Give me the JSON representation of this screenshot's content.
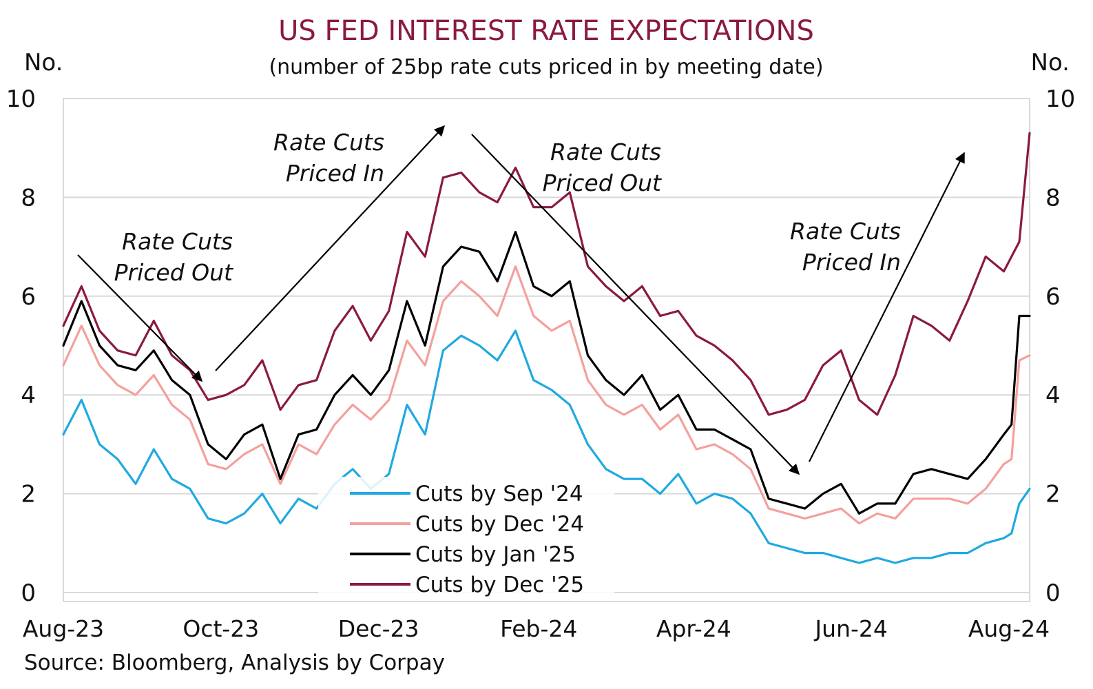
{
  "chart_data": {
    "type": "line",
    "title": "US FED INTEREST RATE EXPECTATIONS",
    "subtitle": "(number of 25bp rate cuts priced in by meeting date)",
    "y_label_left": "No.",
    "y_label_right": "No.",
    "ylim": [
      0,
      10
    ],
    "y_ticks": [
      "0",
      "2",
      "4",
      "6",
      "8",
      "10"
    ],
    "xlim": [
      "2023-08-01",
      "2024-08-09"
    ],
    "x_ticks": [
      {
        "date": "2023-08-01",
        "label": "Aug-23"
      },
      {
        "date": "2023-10-01",
        "label": "Oct-23"
      },
      {
        "date": "2023-12-01",
        "label": "Dec-23"
      },
      {
        "date": "2024-02-01",
        "label": "Feb-24"
      },
      {
        "date": "2024-04-01",
        "label": "Apr-24"
      },
      {
        "date": "2024-06-01",
        "label": "Jun-24"
      },
      {
        "date": "2024-08-01",
        "label": "Aug-24"
      }
    ],
    "grid": true,
    "legend_position": "bottom-center",
    "source": "Source: Bloomberg, Analysis by Corpay",
    "annotations": [
      {
        "text": [
          "Rate Cuts",
          "Priced Out"
        ]
      },
      {
        "text": [
          "Rate Cuts",
          "Priced In"
        ]
      },
      {
        "text": [
          "Rate Cuts",
          "Priced Out"
        ]
      },
      {
        "text": [
          "Rate Cuts",
          "Priced In"
        ]
      }
    ],
    "series": [
      {
        "name": "Cuts by Sep '24",
        "color": "#1fa9e1",
        "x": [
          "2023-08-01",
          "2023-08-08",
          "2023-08-15",
          "2023-08-22",
          "2023-08-29",
          "2023-09-05",
          "2023-09-12",
          "2023-09-19",
          "2023-09-26",
          "2023-10-03",
          "2023-10-10",
          "2023-10-17",
          "2023-10-24",
          "2023-10-31",
          "2023-11-07",
          "2023-11-14",
          "2023-11-21",
          "2023-11-28",
          "2023-12-05",
          "2023-12-12",
          "2023-12-19",
          "2023-12-26",
          "2024-01-02",
          "2024-01-09",
          "2024-01-16",
          "2024-01-23",
          "2024-01-30",
          "2024-02-06",
          "2024-02-13",
          "2024-02-20",
          "2024-02-27",
          "2024-03-05",
          "2024-03-12",
          "2024-03-19",
          "2024-03-26",
          "2024-04-02",
          "2024-04-09",
          "2024-04-16",
          "2024-04-23",
          "2024-04-30",
          "2024-05-07",
          "2024-05-14",
          "2024-05-21",
          "2024-05-28",
          "2024-06-04",
          "2024-06-11",
          "2024-06-18",
          "2024-06-25",
          "2024-07-02",
          "2024-07-09",
          "2024-07-16",
          "2024-07-23",
          "2024-07-30",
          "2024-08-02",
          "2024-08-05",
          "2024-08-09"
        ],
        "values": [
          3.2,
          3.9,
          3.0,
          2.7,
          2.2,
          2.9,
          2.3,
          2.1,
          1.5,
          1.4,
          1.6,
          2.0,
          1.4,
          1.9,
          1.7,
          2.2,
          2.5,
          2.1,
          2.4,
          3.8,
          3.2,
          4.9,
          5.2,
          5.0,
          4.7,
          5.3,
          4.3,
          4.1,
          3.8,
          3.0,
          2.5,
          2.3,
          2.3,
          2.0,
          2.4,
          1.8,
          2.0,
          1.9,
          1.6,
          1.0,
          0.9,
          0.8,
          0.8,
          0.7,
          0.6,
          0.7,
          0.6,
          0.7,
          0.7,
          0.8,
          0.8,
          1.0,
          1.1,
          1.2,
          1.8,
          2.1
        ]
      },
      {
        "name": "Cuts by Dec '24",
        "color": "#f4a09c",
        "x": [
          "2023-08-01",
          "2023-08-08",
          "2023-08-15",
          "2023-08-22",
          "2023-08-29",
          "2023-09-05",
          "2023-09-12",
          "2023-09-19",
          "2023-09-26",
          "2023-10-03",
          "2023-10-10",
          "2023-10-17",
          "2023-10-24",
          "2023-10-31",
          "2023-11-07",
          "2023-11-14",
          "2023-11-21",
          "2023-11-28",
          "2023-12-05",
          "2023-12-12",
          "2023-12-19",
          "2023-12-26",
          "2024-01-02",
          "2024-01-09",
          "2024-01-16",
          "2024-01-23",
          "2024-01-30",
          "2024-02-06",
          "2024-02-13",
          "2024-02-20",
          "2024-02-27",
          "2024-03-05",
          "2024-03-12",
          "2024-03-19",
          "2024-03-26",
          "2024-04-02",
          "2024-04-09",
          "2024-04-16",
          "2024-04-23",
          "2024-04-30",
          "2024-05-07",
          "2024-05-14",
          "2024-05-21",
          "2024-05-28",
          "2024-06-04",
          "2024-06-11",
          "2024-06-18",
          "2024-06-25",
          "2024-07-02",
          "2024-07-09",
          "2024-07-16",
          "2024-07-23",
          "2024-07-30",
          "2024-08-02",
          "2024-08-05",
          "2024-08-09"
        ],
        "values": [
          4.6,
          5.4,
          4.6,
          4.2,
          4.0,
          4.4,
          3.8,
          3.5,
          2.6,
          2.5,
          2.8,
          3.0,
          2.2,
          3.0,
          2.8,
          3.4,
          3.8,
          3.5,
          3.9,
          5.1,
          4.6,
          5.9,
          6.3,
          6.0,
          5.6,
          6.6,
          5.6,
          5.3,
          5.5,
          4.3,
          3.8,
          3.6,
          3.8,
          3.3,
          3.6,
          2.9,
          3.0,
          2.8,
          2.5,
          1.7,
          1.6,
          1.5,
          1.6,
          1.7,
          1.4,
          1.6,
          1.5,
          1.9,
          1.9,
          1.9,
          1.8,
          2.1,
          2.6,
          2.7,
          4.7,
          4.8
        ]
      },
      {
        "name": "Cuts by Jan '25",
        "color": "#000000",
        "x": [
          "2023-08-01",
          "2023-08-08",
          "2023-08-15",
          "2023-08-22",
          "2023-08-29",
          "2023-09-05",
          "2023-09-12",
          "2023-09-19",
          "2023-09-26",
          "2023-10-03",
          "2023-10-10",
          "2023-10-17",
          "2023-10-24",
          "2023-10-31",
          "2023-11-07",
          "2023-11-14",
          "2023-11-21",
          "2023-11-28",
          "2023-12-05",
          "2023-12-12",
          "2023-12-19",
          "2023-12-26",
          "2024-01-02",
          "2024-01-09",
          "2024-01-16",
          "2024-01-23",
          "2024-01-30",
          "2024-02-06",
          "2024-02-13",
          "2024-02-20",
          "2024-02-27",
          "2024-03-05",
          "2024-03-12",
          "2024-03-19",
          "2024-03-26",
          "2024-04-02",
          "2024-04-09",
          "2024-04-16",
          "2024-04-23",
          "2024-04-30",
          "2024-05-07",
          "2024-05-14",
          "2024-05-21",
          "2024-05-28",
          "2024-06-04",
          "2024-06-11",
          "2024-06-18",
          "2024-06-25",
          "2024-07-02",
          "2024-07-09",
          "2024-07-16",
          "2024-07-23",
          "2024-07-30",
          "2024-08-02",
          "2024-08-05",
          "2024-08-09"
        ],
        "values": [
          5.0,
          5.9,
          5.0,
          4.6,
          4.5,
          4.9,
          4.3,
          4.0,
          3.0,
          2.7,
          3.2,
          3.4,
          2.3,
          3.2,
          3.3,
          4.0,
          4.4,
          4.0,
          4.5,
          5.9,
          5.0,
          6.6,
          7.0,
          6.9,
          6.3,
          7.3,
          6.2,
          6.0,
          6.3,
          4.8,
          4.3,
          4.0,
          4.4,
          3.7,
          4.0,
          3.3,
          3.3,
          3.1,
          2.9,
          1.9,
          1.8,
          1.7,
          2.0,
          2.2,
          1.6,
          1.8,
          1.8,
          2.4,
          2.5,
          2.4,
          2.3,
          2.7,
          3.2,
          3.4,
          5.6,
          5.6
        ]
      },
      {
        "name": "Cuts by Dec '25",
        "color": "#8b1a3f",
        "x": [
          "2023-08-01",
          "2023-08-08",
          "2023-08-15",
          "2023-08-22",
          "2023-08-29",
          "2023-09-05",
          "2023-09-12",
          "2023-09-19",
          "2023-09-26",
          "2023-10-03",
          "2023-10-10",
          "2023-10-17",
          "2023-10-24",
          "2023-10-31",
          "2023-11-07",
          "2023-11-14",
          "2023-11-21",
          "2023-11-28",
          "2023-12-05",
          "2023-12-12",
          "2023-12-19",
          "2023-12-26",
          "2024-01-02",
          "2024-01-09",
          "2024-01-16",
          "2024-01-23",
          "2024-01-30",
          "2024-02-06",
          "2024-02-13",
          "2024-02-20",
          "2024-02-27",
          "2024-03-05",
          "2024-03-12",
          "2024-03-19",
          "2024-03-26",
          "2024-04-02",
          "2024-04-09",
          "2024-04-16",
          "2024-04-23",
          "2024-04-30",
          "2024-05-07",
          "2024-05-14",
          "2024-05-21",
          "2024-05-28",
          "2024-06-04",
          "2024-06-11",
          "2024-06-18",
          "2024-06-25",
          "2024-07-02",
          "2024-07-09",
          "2024-07-16",
          "2024-07-23",
          "2024-07-30",
          "2024-08-02",
          "2024-08-05",
          "2024-08-09"
        ],
        "values": [
          5.4,
          6.2,
          5.3,
          4.9,
          4.8,
          5.5,
          4.8,
          4.5,
          3.9,
          4.0,
          4.2,
          4.7,
          3.7,
          4.2,
          4.3,
          5.3,
          5.8,
          5.1,
          5.7,
          7.3,
          6.8,
          8.4,
          8.5,
          8.1,
          7.9,
          8.6,
          7.8,
          7.8,
          8.1,
          6.6,
          6.2,
          5.9,
          6.2,
          5.6,
          5.7,
          5.2,
          5.0,
          4.7,
          4.3,
          3.6,
          3.7,
          3.9,
          4.6,
          4.9,
          3.9,
          3.6,
          4.4,
          5.6,
          5.4,
          5.1,
          5.9,
          6.8,
          6.5,
          6.8,
          7.1,
          9.3
        ]
      }
    ]
  }
}
